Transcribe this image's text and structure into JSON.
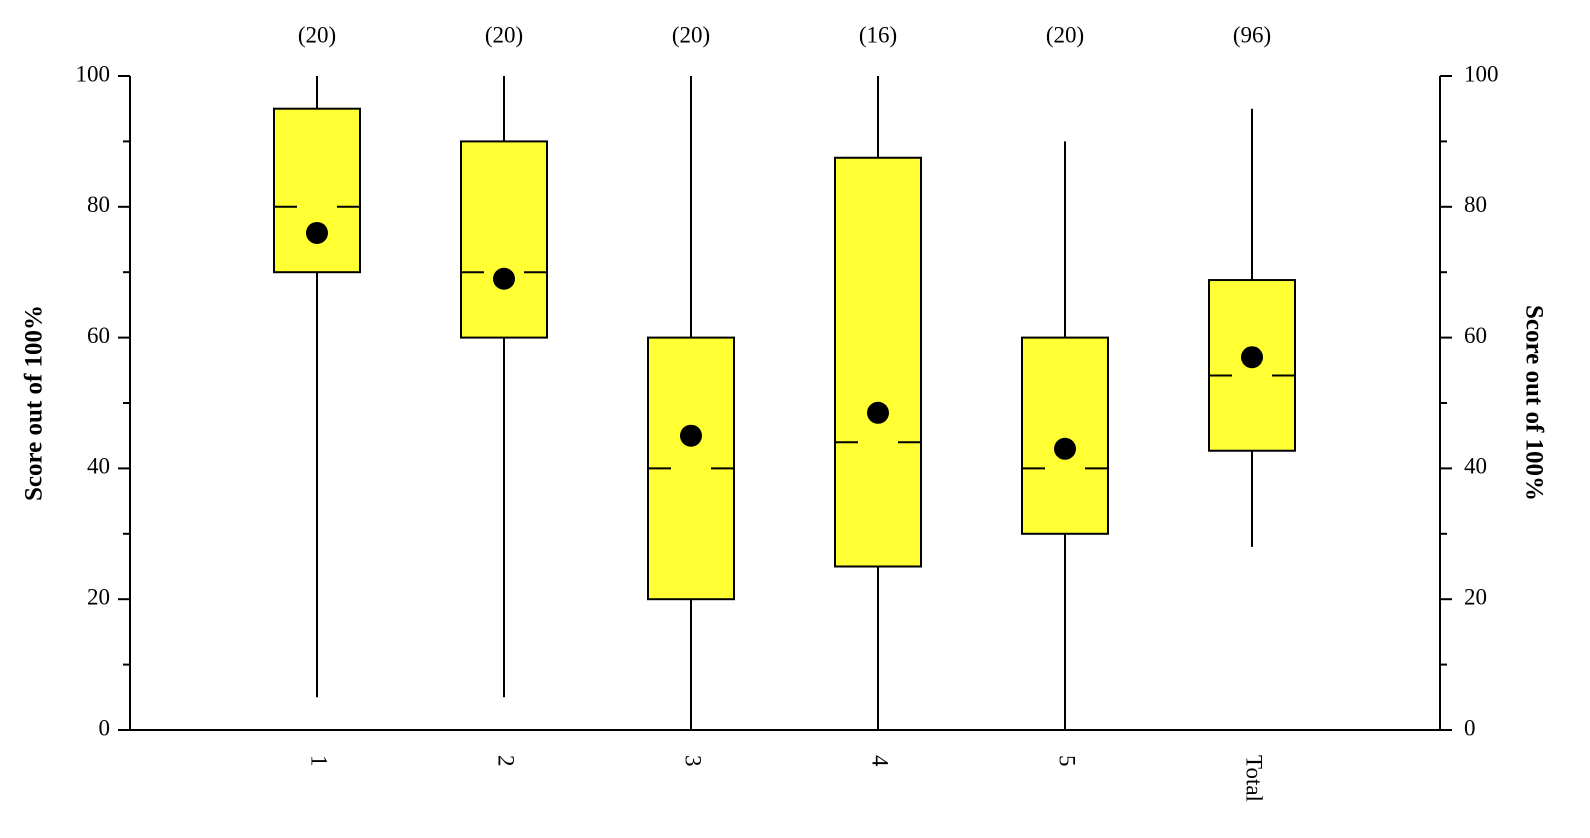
{
  "chart_data": {
    "type": "box",
    "categories": [
      "1",
      "2",
      "3",
      "4",
      "5",
      "Total"
    ],
    "n_labels": [
      "(20)",
      "(20)",
      "(20)",
      "(16)",
      "(20)",
      "(96)"
    ],
    "min": [
      5,
      5,
      0,
      0,
      0,
      28
    ],
    "q1": [
      70,
      60,
      20,
      25,
      30,
      42.7
    ],
    "median": [
      80,
      70,
      40,
      44,
      40,
      54.2
    ],
    "q3": [
      95,
      90,
      60,
      87.5,
      60,
      68.8
    ],
    "max": [
      100,
      100,
      100,
      100,
      90,
      95
    ],
    "mean": [
      76,
      69,
      45,
      48.5,
      43,
      57
    ],
    "color": "#ffff33",
    "ylabel": "Score out of 100%",
    "ylim": [
      0,
      100
    ],
    "yticks": [
      0,
      20,
      40,
      60,
      80,
      100
    ],
    "yminorticks": [
      10,
      30,
      50,
      70,
      90
    ],
    "y2label": "Score out of 100%",
    "y2lim": [
      0,
      100
    ],
    "y2ticks": [
      0,
      20,
      40,
      60,
      80,
      100
    ],
    "y2minorticks": [
      10,
      30,
      50,
      70,
      90
    ]
  }
}
